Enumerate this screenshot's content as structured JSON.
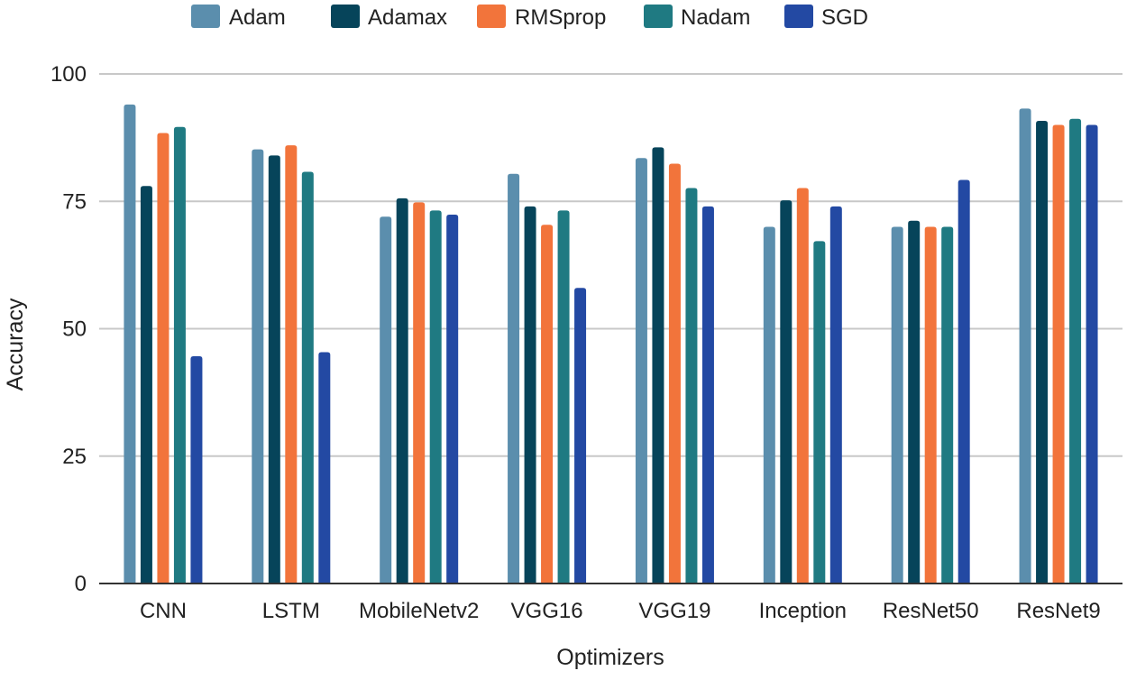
{
  "chart_data": {
    "type": "bar",
    "title": "",
    "xlabel": "Optimizers",
    "ylabel": "Accuracy",
    "ylim": [
      0,
      100
    ],
    "yticks": [
      0,
      25,
      50,
      75,
      100
    ],
    "grid": true,
    "legend_position": "top",
    "categories": [
      "CNN",
      "LSTM",
      "MobileNetv2",
      "VGG16",
      "VGG19",
      "Inception",
      "ResNet50",
      "ResNet9"
    ],
    "series": [
      {
        "name": "Adam",
        "color": "#5b8ead",
        "values": [
          94,
          85.2,
          72,
          80.4,
          83.5,
          70,
          70,
          93.2
        ]
      },
      {
        "name": "Adamax",
        "color": "#06445a",
        "values": [
          78,
          84,
          75.6,
          74,
          85.6,
          75.2,
          71.2,
          90.8
        ]
      },
      {
        "name": "RMSprop",
        "color": "#f2743b",
        "values": [
          88.4,
          86,
          74.8,
          70.4,
          82.4,
          77.6,
          70,
          90
        ]
      },
      {
        "name": "Nadam",
        "color": "#1f7a82",
        "values": [
          89.6,
          80.8,
          73.2,
          73.2,
          77.6,
          67.2,
          70,
          91.2
        ]
      },
      {
        "name": "SGD",
        "color": "#2349a3",
        "values": [
          44.6,
          45.4,
          72.4,
          58,
          74,
          74,
          79.2,
          90
        ]
      }
    ]
  }
}
